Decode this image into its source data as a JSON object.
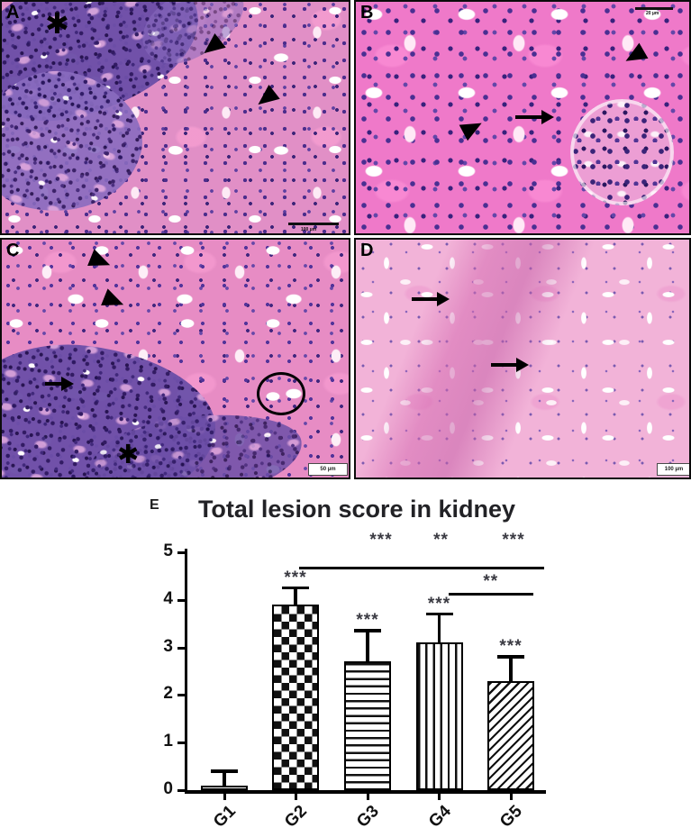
{
  "figure": {
    "panels": {
      "a": {
        "label": "A",
        "asterisk": "✱",
        "scale_text": "100 µm"
      },
      "b": {
        "label": "B",
        "scale_text": "20 µm"
      },
      "c": {
        "label": "C",
        "asterisk": "✱",
        "scale_text": "50 µm"
      },
      "d": {
        "label": "D",
        "scale_text": "100 µm"
      }
    },
    "chart_panel_label": "E"
  },
  "chart_data": {
    "type": "bar",
    "title": "Total lesion score in kidney",
    "xlabel": "",
    "ylabel": "",
    "categories": [
      "G1",
      "G2",
      "G3",
      "G4",
      "G5"
    ],
    "values": [
      0.1,
      3.9,
      2.7,
      3.1,
      2.3
    ],
    "errors_upper": [
      0.3,
      0.35,
      0.65,
      0.6,
      0.5
    ],
    "bar_patterns": [
      "dots",
      "checker",
      "hlines",
      "vlines",
      "dlines"
    ],
    "bar_significance": [
      "",
      "***",
      "***",
      "***",
      "***"
    ],
    "ylim": [
      0,
      5
    ],
    "yticks": [
      0,
      1,
      2,
      3,
      4,
      5
    ],
    "grid": false,
    "legend": "none",
    "comparisons": [
      {
        "line_y_value": 4.7,
        "from": "G2",
        "to": "axis-end",
        "stars_above": [
          {
            "over": "G3",
            "text": "***"
          },
          {
            "over": "G4",
            "text": "**"
          },
          {
            "over": "G5",
            "text": "***"
          }
        ]
      },
      {
        "line_y_value": 4.15,
        "from": "G4",
        "to": "G5",
        "stars_above": [
          {
            "over": "mid",
            "text": "**"
          }
        ]
      }
    ]
  }
}
